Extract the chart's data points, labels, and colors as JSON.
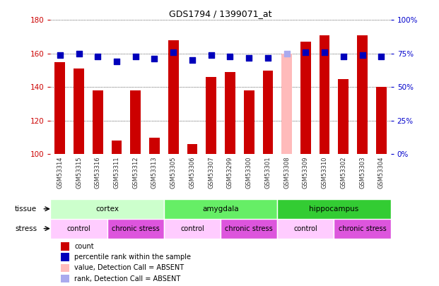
{
  "title": "GDS1794 / 1399071_at",
  "samples": [
    "GSM53314",
    "GSM53315",
    "GSM53316",
    "GSM53311",
    "GSM53312",
    "GSM53313",
    "GSM53305",
    "GSM53306",
    "GSM53307",
    "GSM53299",
    "GSM53300",
    "GSM53301",
    "GSM53308",
    "GSM53309",
    "GSM53310",
    "GSM53302",
    "GSM53303",
    "GSM53304"
  ],
  "bar_values": [
    155,
    151,
    138,
    108,
    138,
    110,
    168,
    106,
    146,
    149,
    138,
    150,
    160,
    167,
    171,
    145,
    171,
    140
  ],
  "bar_colors": [
    "#cc0000",
    "#cc0000",
    "#cc0000",
    "#cc0000",
    "#cc0000",
    "#cc0000",
    "#cc0000",
    "#cc0000",
    "#cc0000",
    "#cc0000",
    "#cc0000",
    "#cc0000",
    "#ffbbbb",
    "#cc0000",
    "#cc0000",
    "#cc0000",
    "#cc0000",
    "#cc0000"
  ],
  "dot_values_pct": [
    74,
    75,
    73,
    69,
    73,
    71,
    76,
    70,
    74,
    73,
    72,
    72,
    75,
    76,
    76,
    73,
    74,
    73
  ],
  "dot_colors": [
    "#0000bb",
    "#0000bb",
    "#0000bb",
    "#0000bb",
    "#0000bb",
    "#0000bb",
    "#0000bb",
    "#0000bb",
    "#0000bb",
    "#0000bb",
    "#0000bb",
    "#0000bb",
    "#aaaaee",
    "#0000bb",
    "#0000bb",
    "#0000bb",
    "#0000bb",
    "#0000bb"
  ],
  "ylim_left": [
    100,
    180
  ],
  "ylim_right": [
    0,
    100
  ],
  "yticks_left": [
    100,
    120,
    140,
    160,
    180
  ],
  "yticks_right": [
    0,
    25,
    50,
    75,
    100
  ],
  "ytick_labels_right": [
    "0%",
    "25%",
    "50%",
    "75%",
    "100%"
  ],
  "tissue_groups": [
    {
      "label": "cortex",
      "start": 0,
      "end": 6,
      "color": "#ccffcc"
    },
    {
      "label": "amygdala",
      "start": 6,
      "end": 12,
      "color": "#66ee66"
    },
    {
      "label": "hippocampus",
      "start": 12,
      "end": 18,
      "color": "#33cc33"
    }
  ],
  "stress_groups": [
    {
      "label": "control",
      "start": 0,
      "end": 3,
      "color": "#ffccff"
    },
    {
      "label": "chronic stress",
      "start": 3,
      "end": 6,
      "color": "#dd55dd"
    },
    {
      "label": "control",
      "start": 6,
      "end": 9,
      "color": "#ffccff"
    },
    {
      "label": "chronic stress",
      "start": 9,
      "end": 12,
      "color": "#dd55dd"
    },
    {
      "label": "control",
      "start": 12,
      "end": 15,
      "color": "#ffccff"
    },
    {
      "label": "chronic stress",
      "start": 15,
      "end": 18,
      "color": "#dd55dd"
    }
  ],
  "legend_items": [
    {
      "label": "count",
      "color": "#cc0000"
    },
    {
      "label": "percentile rank within the sample",
      "color": "#0000bb"
    },
    {
      "label": "value, Detection Call = ABSENT",
      "color": "#ffbbbb"
    },
    {
      "label": "rank, Detection Call = ABSENT",
      "color": "#aaaaee"
    }
  ],
  "bar_width": 0.55,
  "dot_size": 28,
  "background_color": "#ffffff",
  "label_color_left": "#cc0000",
  "label_color_right": "#0000cc",
  "xtick_bg_color": "#cccccc",
  "tissue_label": "tissue",
  "stress_label": "stress"
}
